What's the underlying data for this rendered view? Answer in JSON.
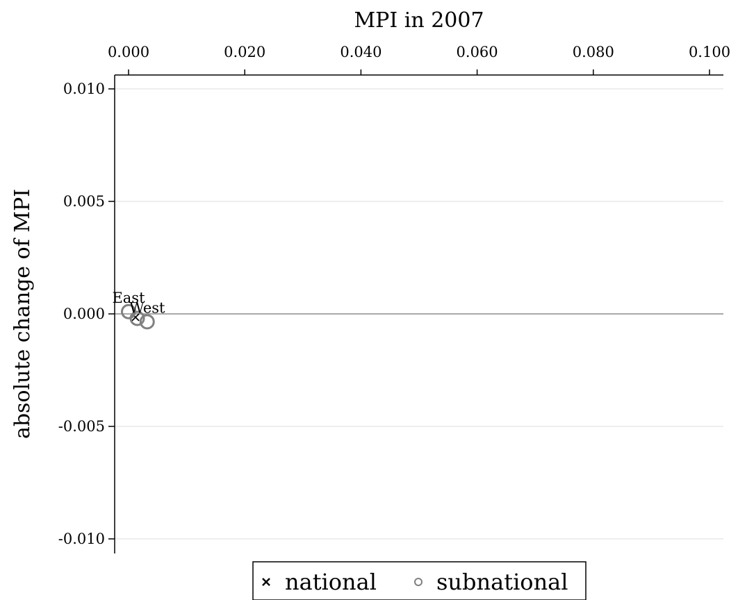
{
  "chart_data": {
    "type": "scatter",
    "title": "",
    "xlabel": "MPI in 2007",
    "ylabel": "absolute change of MPI",
    "xlim": [
      -0.0025,
      0.1025
    ],
    "ylim": [
      -0.0105,
      0.0105
    ],
    "x_ticks": [
      {
        "value": 0.0,
        "label": "0.000"
      },
      {
        "value": 0.02,
        "label": "0.020"
      },
      {
        "value": 0.04,
        "label": "0.040"
      },
      {
        "value": 0.06,
        "label": "0.060"
      },
      {
        "value": 0.08,
        "label": "0.080"
      },
      {
        "value": 0.1,
        "label": "0.100"
      }
    ],
    "y_ticks": [
      {
        "value": 0.01,
        "label": "0.010"
      },
      {
        "value": 0.005,
        "label": "0.005"
      },
      {
        "value": 0.0,
        "label": "0.000"
      },
      {
        "value": -0.005,
        "label": "-0.005"
      },
      {
        "value": -0.01,
        "label": "-0.010"
      }
    ],
    "grid": true,
    "reference_line_y": 0.0,
    "series": [
      {
        "name": "national",
        "marker": "x",
        "color": "#000000",
        "points": [
          {
            "x": 0.0012,
            "y": -0.00015,
            "label": ""
          }
        ]
      },
      {
        "name": "subnational",
        "marker": "circle",
        "color": "#808080",
        "points": [
          {
            "x": 0.0,
            "y": 0.0001,
            "label": "East"
          },
          {
            "x": 0.0015,
            "y": -0.0002,
            "label": ""
          },
          {
            "x": 0.0032,
            "y": -0.00035,
            "label": "West"
          }
        ]
      }
    ],
    "legend": {
      "position": "bottom",
      "entries": [
        {
          "label": "national",
          "marker": "×"
        },
        {
          "label": "subnational",
          "marker": "○"
        }
      ]
    }
  }
}
